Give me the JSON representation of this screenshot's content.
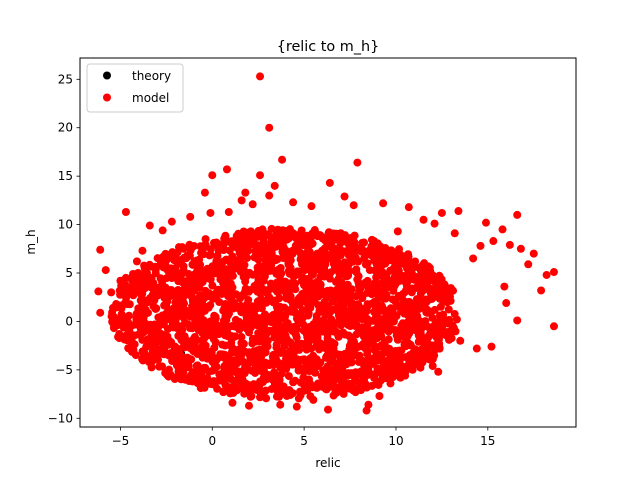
{
  "chart_data": {
    "type": "scatter",
    "title": "{relic to m_h}",
    "xlabel": "relic",
    "ylabel": "m_h",
    "xlim": [
      -7.2,
      19.8
    ],
    "ylim": [
      -10.9,
      27.2
    ],
    "xticks": [
      -5,
      0,
      5,
      10,
      15
    ],
    "yticks": [
      -10,
      -5,
      0,
      5,
      10,
      15,
      20,
      25
    ],
    "grid": false,
    "legend_position": "top-left",
    "series": [
      {
        "name": "theory",
        "color": "#000000",
        "points": [
          [
            -1.9,
            -3.4
          ],
          [
            -1.8,
            -3.6
          ],
          [
            -1.7,
            -3.3
          ]
        ]
      },
      {
        "name": "model",
        "color": "#ff0000",
        "core": {
          "center": [
            4.0,
            0.8
          ],
          "x_halfwidth": 9.5,
          "y_halfwidth": 8.8,
          "count": 2400
        },
        "points": [
          [
            2.6,
            25.3
          ],
          [
            3.1,
            20.0
          ],
          [
            7.9,
            16.4
          ],
          [
            3.8,
            16.7
          ],
          [
            0.8,
            15.7
          ],
          [
            0.0,
            15.1
          ],
          [
            2.6,
            15.1
          ],
          [
            6.4,
            14.3
          ],
          [
            -0.4,
            13.3
          ],
          [
            1.8,
            13.3
          ],
          [
            3.1,
            13.0
          ],
          [
            4.4,
            12.3
          ],
          [
            7.2,
            12.9
          ],
          [
            1.6,
            12.5
          ],
          [
            7.7,
            12.0
          ],
          [
            -4.7,
            11.3
          ],
          [
            -3.4,
            9.9
          ],
          [
            -6.1,
            7.4
          ],
          [
            -6.2,
            3.1
          ],
          [
            -5.5,
            3.0
          ],
          [
            -6.1,
            0.9
          ],
          [
            -5.4,
            0.2
          ],
          [
            -5.2,
            -0.3
          ],
          [
            -5.4,
            1.4
          ],
          [
            -4.7,
            4.5
          ],
          [
            -5.0,
            4.2
          ],
          [
            -4.1,
            6.2
          ],
          [
            -3.8,
            7.3
          ],
          [
            -4.3,
            2.7
          ],
          [
            -3.6,
            -0.8
          ],
          [
            12.5,
            11.2
          ],
          [
            13.4,
            11.4
          ],
          [
            14.9,
            10.2
          ],
          [
            16.6,
            11.0
          ],
          [
            15.8,
            9.5
          ],
          [
            16.8,
            7.5
          ],
          [
            17.5,
            7.0
          ],
          [
            18.2,
            4.8
          ],
          [
            18.6,
            5.1
          ],
          [
            18.6,
            -0.5
          ],
          [
            16.6,
            0.1
          ],
          [
            15.9,
            3.6
          ],
          [
            15.2,
            -2.6
          ],
          [
            14.4,
            -2.8
          ],
          [
            13.5,
            -2.0
          ],
          [
            12.0,
            -4.6
          ],
          [
            12.3,
            -5.2
          ],
          [
            8.5,
            -8.6
          ],
          [
            8.4,
            -9.2
          ],
          [
            6.3,
            -9.1
          ],
          [
            7.2,
            -6.7
          ],
          [
            7.8,
            -7.3
          ],
          [
            2.0,
            -8.7
          ],
          [
            3.7,
            -8.6
          ],
          [
            4.6,
            -8.8
          ],
          [
            0.6,
            -7.3
          ],
          [
            -0.3,
            -6.1
          ],
          [
            9.7,
            -6.4
          ],
          [
            10.5,
            -5.6
          ],
          [
            11.7,
            -3.4
          ],
          [
            14.2,
            6.5
          ],
          [
            15.3,
            8.3
          ],
          [
            13.2,
            9.1
          ],
          [
            10.1,
            9.3
          ],
          [
            11.5,
            10.5
          ],
          [
            -2.7,
            9.4
          ],
          [
            -1.2,
            10.8
          ],
          [
            -0.1,
            11.2
          ],
          [
            0.9,
            11.3
          ],
          [
            5.4,
            11.9
          ],
          [
            9.3,
            12.2
          ],
          [
            10.7,
            11.8
          ],
          [
            12.1,
            10.1
          ],
          [
            14.6,
            7.8
          ],
          [
            17.2,
            5.9
          ],
          [
            16.0,
            1.9
          ],
          [
            -2.2,
            10.3
          ],
          [
            -5.8,
            5.3
          ],
          [
            -4.9,
            -0.1
          ],
          [
            -3.3,
            -2.4
          ],
          [
            -2.6,
            -3.0
          ],
          [
            -1.0,
            -5.5
          ],
          [
            1.1,
            -8.4
          ],
          [
            5.5,
            -8.1
          ],
          [
            9.1,
            -7.7
          ],
          [
            13.0,
            -1.1
          ],
          [
            17.9,
            3.2
          ],
          [
            16.2,
            7.9
          ],
          [
            3.4,
            14.0
          ],
          [
            2.2,
            12.1
          ]
        ]
      }
    ]
  }
}
